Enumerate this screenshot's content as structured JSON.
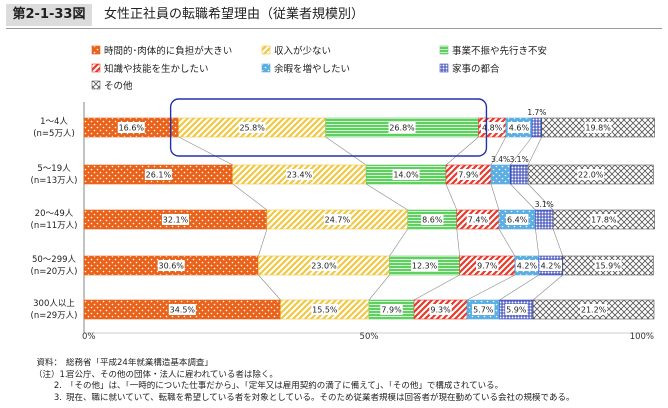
{
  "header": {
    "figure_id": "第2-1-33図",
    "title": "女性正社員の転職希望理由（従業者規模別）"
  },
  "chart_data": {
    "type": "bar",
    "stacked": "horizontal-100%",
    "title": "女性正社員の転職希望理由（従業者規模別）",
    "categories": [
      [
        "1～4人",
        "(n=5万人)"
      ],
      [
        "5～19人",
        "(n=13万人)"
      ],
      [
        "20～49人",
        "(n=11万人)"
      ],
      [
        "50～299人",
        "(n=20万人)"
      ],
      [
        "300人以上",
        "(n=29万人)"
      ]
    ],
    "series": [
      {
        "name": "時間的･肉体的に負担が大きい",
        "color": "#e8641c",
        "pattern": "dots",
        "values": [
          16.6,
          26.1,
          32.1,
          30.6,
          34.5
        ]
      },
      {
        "name": "収入が少ない",
        "color": "#f2c744",
        "pattern": "diagonal",
        "values": [
          25.8,
          23.4,
          24.7,
          23.0,
          15.5
        ]
      },
      {
        "name": "事業不振や先行き不安",
        "color": "#5fcf5f",
        "pattern": "lines",
        "values": [
          26.8,
          14.0,
          8.6,
          12.3,
          7.9
        ]
      },
      {
        "name": "知識や技能を生かしたい",
        "color": "#e8392a",
        "pattern": "diagonal",
        "values": [
          4.8,
          7.9,
          7.4,
          9.7,
          9.3
        ]
      },
      {
        "name": "余暇を増やしたい",
        "color": "#5aaee0",
        "pattern": "dots",
        "values": [
          4.6,
          3.4,
          6.4,
          4.2,
          5.7
        ]
      },
      {
        "name": "家事の都合",
        "color": "#3a49b8",
        "pattern": "grid",
        "values": [
          1.7,
          3.1,
          3.1,
          4.2,
          5.9
        ]
      },
      {
        "name": "その他",
        "color": "#555555",
        "pattern": "cross",
        "values": [
          19.8,
          22.0,
          17.8,
          15.9,
          21.2
        ]
      }
    ],
    "xaxis": {
      "ticks": [
        "0%",
        "50%",
        "100%"
      ],
      "range": [
        0,
        100
      ]
    },
    "highlight": {
      "row": 0,
      "from_series": 1,
      "to_series": 2,
      "color": "#2233aa"
    },
    "legend_position": "top"
  },
  "notes": [
    {
      "num": "資料：",
      "text": "総務省「平成24年就業構造基本調査」"
    },
    {
      "num": "（注）1.",
      "text": "官公庁、その他の団体・法人に雇われている者は除く。"
    },
    {
      "num": "2.",
      "text": "「その他」は、「一時的についた仕事だから」、「定年又は雇用契約の満了に備えて」、「その他」で構成されている。"
    },
    {
      "num": "3.",
      "text": "現在、職に就いていて、転職を希望している者を対象としている。そのため従業者規模は回答者が現在勤めている会社の規模である。"
    }
  ]
}
